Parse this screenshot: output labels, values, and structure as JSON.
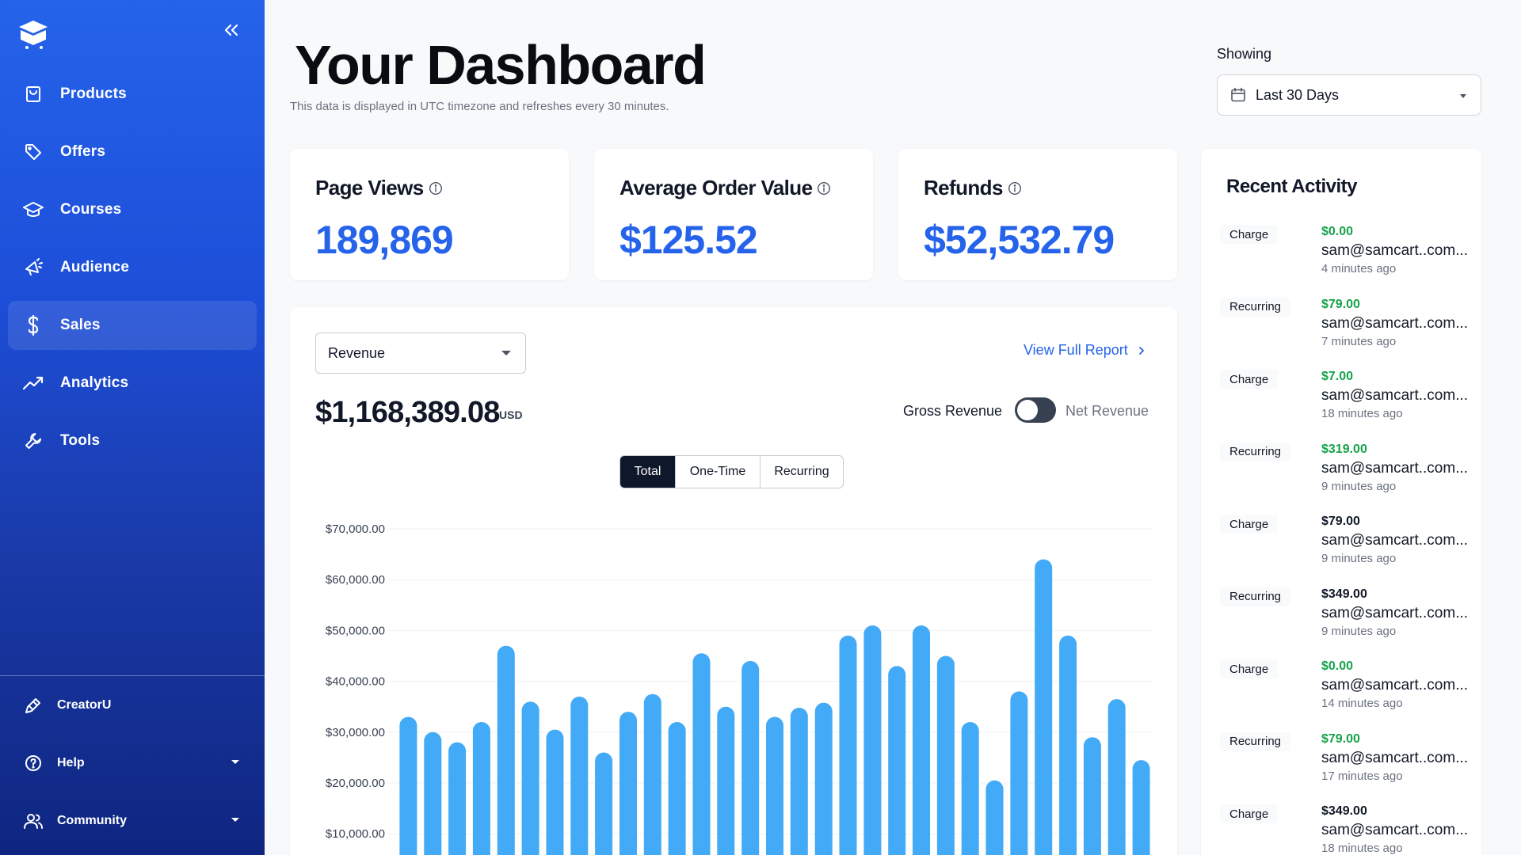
{
  "sidebar": {
    "items": [
      {
        "label": "Products",
        "icon": "bag-icon"
      },
      {
        "label": "Offers",
        "icon": "tag-icon"
      },
      {
        "label": "Courses",
        "icon": "graduation-cap-icon"
      },
      {
        "label": "Audience",
        "icon": "megaphone-icon"
      },
      {
        "label": "Sales",
        "icon": "dollar-icon",
        "active": true
      },
      {
        "label": "Analytics",
        "icon": "trend-up-icon"
      },
      {
        "label": "Tools",
        "icon": "wrench-icon"
      }
    ],
    "bottom": [
      {
        "label": "CreatorU",
        "icon": "pen-tool-icon"
      },
      {
        "label": "Help",
        "icon": "help-circle-icon"
      },
      {
        "label": "Community",
        "icon": "users-icon"
      }
    ]
  },
  "header": {
    "title": "Your Dashboard",
    "subtitle": "This data is displayed in UTC timezone and refreshes every 30 minutes.",
    "showing_label": "Showing",
    "range_value": "Last 30 Days"
  },
  "stats": [
    {
      "label": "Page Views",
      "value": "189,869"
    },
    {
      "label": "Average Order Value",
      "value": "$125.52"
    },
    {
      "label": "Refunds",
      "value": "$52,532.79"
    }
  ],
  "revenue": {
    "metric_select": "Revenue",
    "view_report": "View Full Report",
    "total": "$1,168,389.08",
    "currency": "USD",
    "gross_label": "Gross Revenue",
    "net_label": "Net Revenue",
    "segments": [
      "Total",
      "One-Time",
      "Recurring"
    ],
    "active_segment": "Total"
  },
  "chart_data": {
    "type": "bar",
    "y_ticks": [
      "$70,000.00",
      "$60,000.00",
      "$50,000.00",
      "$40,000.00",
      "$30,000.00",
      "$20,000.00",
      "$10,000.00"
    ],
    "ylim": [
      0,
      70000
    ],
    "grid": true,
    "values": [
      33000,
      30000,
      28000,
      32000,
      47000,
      36000,
      30500,
      37000,
      26000,
      34000,
      37500,
      32000,
      45500,
      35000,
      44000,
      33000,
      34800,
      35800,
      49000,
      51000,
      43000,
      51000,
      45000,
      32000,
      20500,
      38000,
      64000,
      49000,
      29000,
      36500,
      24500
    ],
    "bar_color": "#42aaf6"
  },
  "recent_activity": {
    "title": "Recent Activity",
    "items": [
      {
        "type": "Charge",
        "amount": "$0.00",
        "email": "sam@samcart..com...",
        "time": "4 minutes ago",
        "amount_color": "#16a34a"
      },
      {
        "type": "Recurring",
        "amount": "$79.00",
        "email": "sam@samcart..com...",
        "time": "7 minutes ago",
        "amount_color": "#16a34a"
      },
      {
        "type": "Charge",
        "amount": "$7.00",
        "email": "sam@samcart..com...",
        "time": "18 minutes ago",
        "amount_color": "#16a34a"
      },
      {
        "type": "Recurring",
        "amount": "$319.00",
        "email": "sam@samcart..com...",
        "time": "9 minutes ago",
        "amount_color": "#16a34a"
      },
      {
        "type": "Charge",
        "amount": "$79.00",
        "email": "sam@samcart..com...",
        "time": "9 minutes ago",
        "amount_color": "#111827"
      },
      {
        "type": "Recurring",
        "amount": "$349.00",
        "email": "sam@samcart..com...",
        "time": "9 minutes ago",
        "amount_color": "#111827"
      },
      {
        "type": "Charge",
        "amount": "$0.00",
        "email": "sam@samcart..com...",
        "time": "14 minutes ago",
        "amount_color": "#16a34a"
      },
      {
        "type": "Recurring",
        "amount": "$79.00",
        "email": "sam@samcart..com...",
        "time": "17 minutes ago",
        "amount_color": "#16a34a"
      },
      {
        "type": "Charge",
        "amount": "$349.00",
        "email": "sam@samcart..com...",
        "time": "18 minutes ago",
        "amount_color": "#111827"
      }
    ]
  }
}
